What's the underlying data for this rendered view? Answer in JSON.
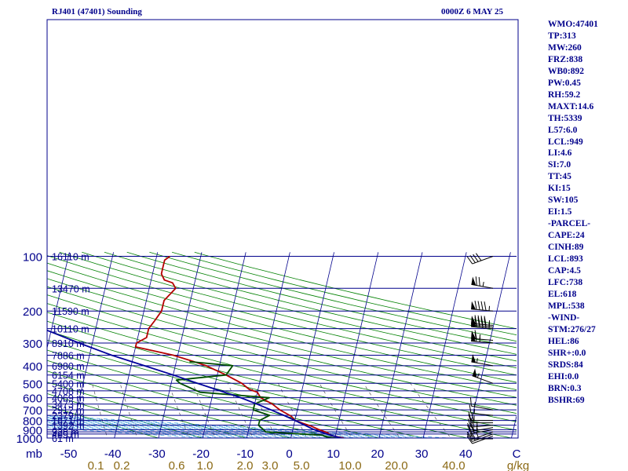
{
  "header": {
    "station": "RJ401 (47401) Sounding",
    "time": "0000Z  6 MAY 25"
  },
  "indices": [
    "WMO:47401",
    "TP:313",
    "MW:260",
    "FRZ:838",
    "WB0:892",
    "PW:0.45",
    "RH:59.2",
    "MAXT:14.6",
    "TH:5339",
    "L57:6.0",
    "LCL:949",
    "LI:4.6",
    "SI:7.0",
    "TT:45",
    "KI:15",
    "SW:105",
    "EI:1.5",
    "-PARCEL-",
    "CAPE:24",
    "CINH:89",
    "LCL:893",
    "CAP:4.5",
    "LFC:738",
    "EL:618",
    "MPL:538",
    "-WIND-",
    "STM:276/27",
    "HEL:86",
    "SHR+:0.0",
    "SRDS:84",
    "EHI:0.0",
    "BRN:0.3",
    "BSHR:69"
  ],
  "colors": {
    "isobar": "#00008b",
    "axis_text": "#00008b",
    "isotherm": "#00008b",
    "dry_adiabat": "#008000",
    "moist_adiabat": "#4aa3df",
    "mixing_ratio": "#555555",
    "temperature": "#b40000",
    "dewpoint": "#004d00",
    "parcel": "#00009b",
    "mixing_ratio_text": "#8b6914"
  },
  "chart_data": {
    "type": "line",
    "title": "RJ401 (47401) Sounding",
    "pressure_axis_unit": "mb",
    "temperature_axis_unit": "C",
    "mixing_ratio_unit": "g/kg",
    "pressure_ticks": [
      100,
      200,
      300,
      400,
      500,
      600,
      700,
      800,
      900,
      1000
    ],
    "pressure_tick_labels": [
      "100",
      "200",
      "300",
      "400",
      "500",
      "600",
      "700",
      "800",
      "900",
      "1000"
    ],
    "temperature_ticks": [
      -50,
      -40,
      -30,
      -20,
      -10,
      0,
      10,
      20,
      30,
      40
    ],
    "temperature_tick_labels": [
      "-50",
      "-40",
      "-30",
      "-20",
      "-10",
      "0",
      "10",
      "20",
      "30",
      "40"
    ],
    "mixing_ratio_ticks": [
      0.1,
      0.2,
      0.6,
      1.0,
      2.0,
      3.0,
      5.0,
      10.0,
      20.0,
      40.0
    ],
    "mixing_ratio_labels": [
      "0.1",
      "0.2",
      "0.6",
      "1.0",
      "2.0",
      "3.0",
      "5.0",
      "10.0",
      "20.0",
      "40.0"
    ],
    "heights": [
      {
        "p": 1000,
        "label": "61 m"
      },
      {
        "p": 950,
        "label": "485 m"
      },
      {
        "p": 925,
        "label": "928 m"
      },
      {
        "p": 850,
        "label": "1392 m"
      },
      {
        "p": 800,
        "label": "1871 m"
      },
      {
        "p": 750,
        "label": "2379 m"
      },
      {
        "p": 700,
        "label": "2912 m"
      },
      {
        "p": 650,
        "label": "3473 m"
      },
      {
        "p": 600,
        "label": "4069 m"
      },
      {
        "p": 550,
        "label": "4708 m"
      },
      {
        "p": 500,
        "label": "5400 m"
      },
      {
        "p": 450,
        "label": "6154 m"
      },
      {
        "p": 400,
        "label": "6980 m"
      },
      {
        "p": 350,
        "label": "7886 m"
      },
      {
        "p": 300,
        "label": "8910 m"
      },
      {
        "p": 250,
        "label": "10110 m"
      },
      {
        "p": 200,
        "label": "11590 m"
      },
      {
        "p": 150,
        "label": "13470 m"
      },
      {
        "p": 100,
        "label": "16110 m"
      }
    ],
    "series": [
      {
        "key": "temperature",
        "values": [
          [
            1015,
            12.5
          ],
          [
            1000,
            12
          ],
          [
            970,
            9
          ],
          [
            935,
            8
          ],
          [
            900,
            6
          ],
          [
            860,
            4
          ],
          [
            830,
            2
          ],
          [
            800,
            0
          ],
          [
            760,
            -1
          ],
          [
            700,
            -4
          ],
          [
            650,
            -6
          ],
          [
            600,
            -9
          ],
          [
            560,
            -10
          ],
          [
            540,
            -12
          ],
          [
            500,
            -14
          ],
          [
            450,
            -18
          ],
          [
            400,
            -23
          ],
          [
            380,
            -26
          ],
          [
            350,
            -31
          ],
          [
            315,
            -40
          ],
          [
            300,
            -40
          ],
          [
            280,
            -38
          ],
          [
            250,
            -38
          ],
          [
            225,
            -37
          ],
          [
            200,
            -36
          ],
          [
            175,
            -36
          ],
          [
            150,
            -34
          ],
          [
            140,
            -35
          ],
          [
            135,
            -37
          ],
          [
            125,
            -38
          ],
          [
            115,
            -38
          ],
          [
            105,
            -38
          ],
          [
            100,
            -37
          ]
        ]
      },
      {
        "key": "dewpoint",
        "values": [
          [
            1015,
            12.3
          ],
          [
            985,
            8
          ],
          [
            965,
            7
          ],
          [
            925,
            -6
          ],
          [
            850,
            -8
          ],
          [
            800,
            -8
          ],
          [
            750,
            -6
          ],
          [
            700,
            -10
          ],
          [
            650,
            -10
          ],
          [
            600,
            -7
          ],
          [
            560,
            -23
          ],
          [
            500,
            -28
          ],
          [
            480,
            -29
          ],
          [
            450,
            -18
          ],
          [
            400,
            -17
          ],
          [
            380,
            -27
          ]
        ]
      },
      {
        "key": "parcel",
        "values": [
          [
            1015,
            12.5
          ],
          [
            960,
            8.5
          ],
          [
            893,
            4.5
          ],
          [
            850,
            2.5
          ],
          [
            800,
            0
          ],
          [
            750,
            -2.8
          ],
          [
            700,
            -6
          ],
          [
            650,
            -9.5
          ],
          [
            600,
            -13.5
          ],
          [
            550,
            -18.5
          ],
          [
            500,
            -24
          ],
          [
            450,
            -30
          ],
          [
            400,
            -37
          ],
          [
            350,
            -45
          ],
          [
            300,
            -53
          ],
          [
            250,
            -62
          ],
          [
            200,
            -72
          ],
          [
            150,
            -85
          ],
          [
            110,
            -99
          ]
        ]
      }
    ],
    "wind_barbs": [
      {
        "p": 1010,
        "dir": 270,
        "spd": 5
      },
      {
        "p": 975,
        "dir": 250,
        "spd": 10
      },
      {
        "p": 950,
        "dir": 250,
        "spd": 20
      },
      {
        "p": 925,
        "dir": 250,
        "spd": 25
      },
      {
        "p": 900,
        "dir": 260,
        "spd": 25
      },
      {
        "p": 875,
        "dir": 260,
        "spd": 25
      },
      {
        "p": 850,
        "dir": 265,
        "spd": 25
      },
      {
        "p": 825,
        "dir": 270,
        "spd": 20
      },
      {
        "p": 800,
        "dir": 270,
        "spd": 15
      },
      {
        "p": 750,
        "dir": 275,
        "spd": 15
      },
      {
        "p": 700,
        "dir": 280,
        "spd": 15
      },
      {
        "p": 500,
        "dir": 290,
        "spd": 55
      },
      {
        "p": 400,
        "dir": 280,
        "spd": 55
      },
      {
        "p": 300,
        "dir": 275,
        "spd": 65
      },
      {
        "p": 290,
        "dir": 275,
        "spd": 65
      },
      {
        "p": 250,
        "dir": 275,
        "spd": 95
      },
      {
        "p": 245,
        "dir": 275,
        "spd": 95
      },
      {
        "p": 240,
        "dir": 275,
        "spd": 95
      },
      {
        "p": 200,
        "dir": 275,
        "spd": 95
      },
      {
        "p": 150,
        "dir": 280,
        "spd": 75
      },
      {
        "p": 100,
        "dir": 250,
        "spd": 40
      }
    ]
  }
}
